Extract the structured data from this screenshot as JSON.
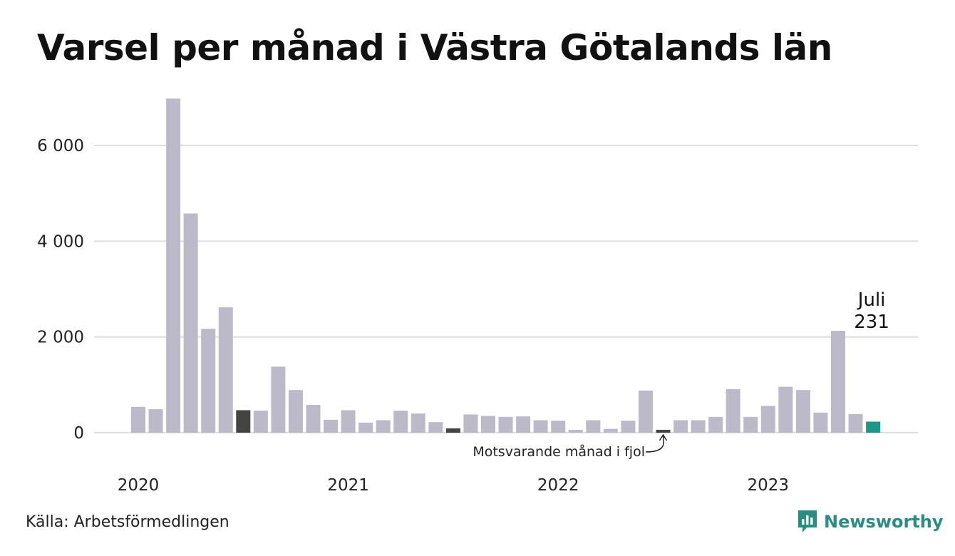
{
  "chart_data": {
    "type": "bar",
    "title": "Varsel per månad i Västra Götalands län",
    "xlabel": "",
    "ylabel": "",
    "ylim": [
      0,
      7000
    ],
    "yticks": [
      0,
      2000,
      4000,
      6000
    ],
    "ytick_labels": [
      "0",
      "2 000",
      "4 000",
      "6 000"
    ],
    "year_labels": [
      "2020",
      "2021",
      "2022",
      "2023"
    ],
    "grid": true,
    "categories": [
      "2020-01",
      "2020-02",
      "2020-03",
      "2020-04",
      "2020-05",
      "2020-06",
      "2020-07",
      "2020-08",
      "2020-09",
      "2020-10",
      "2020-11",
      "2020-12",
      "2021-01",
      "2021-02",
      "2021-03",
      "2021-04",
      "2021-05",
      "2021-06",
      "2021-07",
      "2021-08",
      "2021-09",
      "2021-10",
      "2021-11",
      "2021-12",
      "2022-01",
      "2022-02",
      "2022-03",
      "2022-04",
      "2022-05",
      "2022-06",
      "2022-07",
      "2022-08",
      "2022-09",
      "2022-10",
      "2022-11",
      "2022-12",
      "2023-01",
      "2023-02",
      "2023-03",
      "2023-04",
      "2023-05",
      "2023-06",
      "2023-07"
    ],
    "values": [
      540,
      490,
      6980,
      4580,
      2170,
      2620,
      470,
      460,
      1380,
      890,
      580,
      270,
      470,
      210,
      260,
      460,
      400,
      220,
      90,
      380,
      350,
      330,
      340,
      260,
      250,
      60,
      260,
      80,
      250,
      880,
      60,
      260,
      260,
      330,
      910,
      330,
      560,
      960,
      890,
      420,
      2130,
      390,
      231
    ],
    "comparison_months": [
      "2020-07",
      "2021-07",
      "2022-07"
    ],
    "highlight": {
      "category": "2023-07",
      "label": "Juli",
      "value_label": "231"
    },
    "annotation": {
      "text": "Motsvarande månad i fjol",
      "target": "2022-07"
    },
    "colors": {
      "bar": "#bcbac8",
      "comparison": "#444444",
      "highlight": "#1e9688",
      "grid": "#dddddd"
    }
  },
  "source": "Källa: Arbetsförmedlingen",
  "brand": {
    "name": "Newsworthy",
    "icon": "newsworthy-logo-icon",
    "color": "#2b8c82"
  }
}
